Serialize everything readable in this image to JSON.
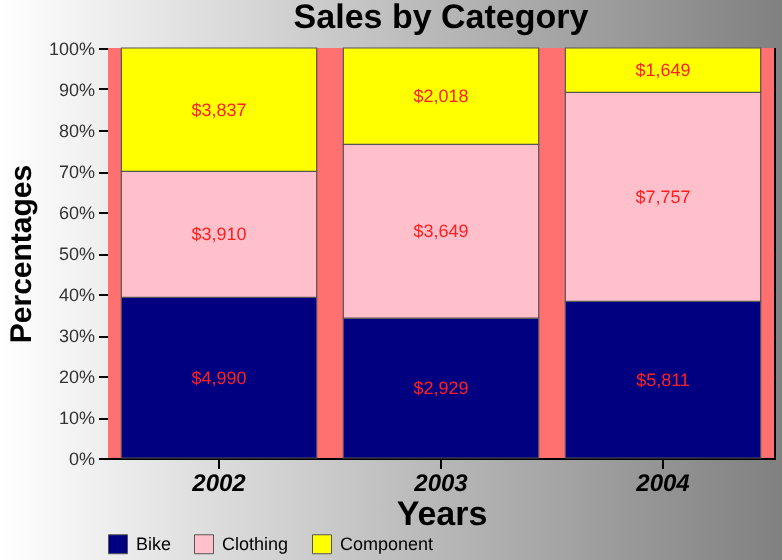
{
  "chart_data": {
    "type": "bar",
    "title": "Sales by Category",
    "xlabel": "Years",
    "ylabel": "Percentages",
    "categories": [
      "2002",
      "2003",
      "2004"
    ],
    "stacked": true,
    "series": [
      {
        "name": "Bike",
        "color": "#000080",
        "values": [
          39.2,
          34.1,
          38.2
        ]
      },
      {
        "name": "Clothing",
        "color": "#ffc0cb",
        "values": [
          30.7,
          42.4,
          51.0
        ]
      },
      {
        "name": "Component",
        "color": "#ffff00",
        "values": [
          30.1,
          23.5,
          10.8
        ]
      }
    ],
    "annotations": [
      "$4,990",
      "$2,929",
      "$5,811",
      "$3,910",
      "$3,649",
      "$7,757",
      "$3,837",
      "$2,018",
      "$1,649"
    ],
    "ylim": [
      0,
      100
    ],
    "yticks": [
      {
        "value": 0,
        "label": "0%"
      },
      {
        "value": 10,
        "label": "10%"
      },
      {
        "value": 20,
        "label": "20%"
      },
      {
        "value": 30,
        "label": "30%"
      },
      {
        "value": 40,
        "label": "40%"
      },
      {
        "value": 50,
        "label": "50%"
      },
      {
        "value": 60,
        "label": "60%"
      },
      {
        "value": 70,
        "label": "70%"
      },
      {
        "value": 80,
        "label": "80%"
      },
      {
        "value": 90,
        "label": "90%"
      },
      {
        "value": 100,
        "label": "100%"
      }
    ],
    "bands": [
      {
        "axis": "y",
        "from": 0,
        "to": 100,
        "color": "#ff7070"
      }
    ],
    "grid": "y",
    "legend": "bottom"
  }
}
